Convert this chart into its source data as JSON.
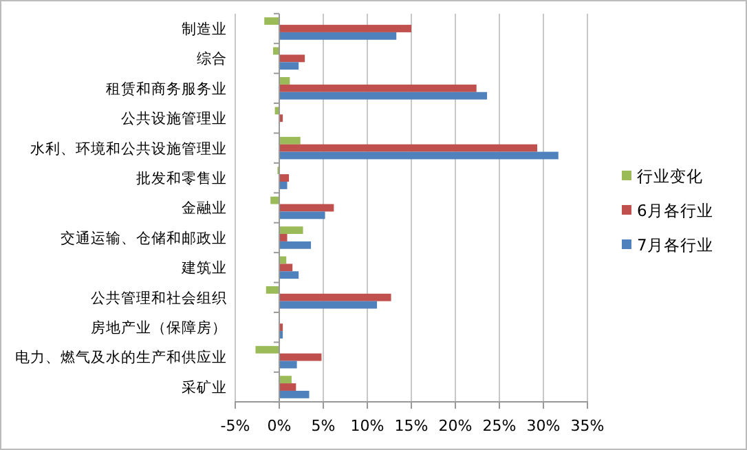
{
  "chart_data": {
    "type": "bar",
    "orientation": "horizontal",
    "categories": [
      "制造业",
      "综合",
      "租赁和商务服务业",
      "公共设施管理业",
      "水利、环境和公共设施管理业",
      "批发和零售业",
      "金融业",
      "交通运输、仓储和邮政业",
      "建筑业",
      "公共管理和社会组织",
      "房地产业（保障房）",
      "电力、燃气及水的生产和供应业",
      "采矿业"
    ],
    "series": [
      {
        "name": "行业变化",
        "color": "#9bbb59",
        "values": [
          -1.7,
          -0.7,
          1.2,
          -0.5,
          2.4,
          -0.2,
          -1.0,
          2.7,
          0.8,
          -1.5,
          0,
          -2.7,
          1.4
        ]
      },
      {
        "name": "6月各行业",
        "color": "#c0504d",
        "values": [
          15.0,
          2.9,
          22.4,
          0.4,
          29.3,
          1.1,
          6.2,
          0.9,
          1.5,
          12.7,
          0.4,
          4.8,
          1.9
        ]
      },
      {
        "name": "7月各行业",
        "color": "#4f81bd",
        "values": [
          13.3,
          2.2,
          23.6,
          0,
          31.7,
          0.9,
          5.2,
          3.6,
          2.2,
          11.1,
          0.4,
          2.0,
          3.4
        ]
      }
    ],
    "xlim": [
      -5,
      35
    ],
    "xticks": [
      {
        "value": -5,
        "label": "-5%"
      },
      {
        "value": 0,
        "label": "0%"
      },
      {
        "value": 5,
        "label": "5%"
      },
      {
        "value": 10,
        "label": "10%"
      },
      {
        "value": 15,
        "label": "15%"
      },
      {
        "value": 20,
        "label": "20%"
      },
      {
        "value": 25,
        "label": "25%"
      },
      {
        "value": 30,
        "label": "30%"
      },
      {
        "value": 35,
        "label": "35%"
      }
    ],
    "grid": "x",
    "legend": "right"
  }
}
